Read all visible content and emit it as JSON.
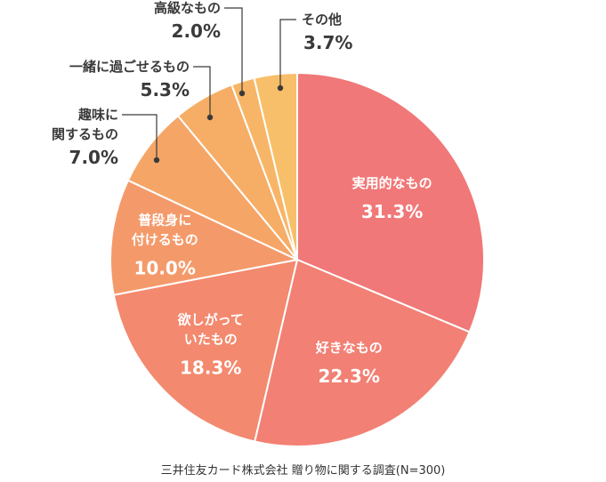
{
  "chart_data": {
    "type": "pie",
    "categories": [
      "実用的なもの",
      "好きなもの",
      "欲しがっていたもの",
      "普段身に付けるもの",
      "趣味に関するもの",
      "一緒に過ごせるもの",
      "高級なもの",
      "その他"
    ],
    "slices": [
      {
        "name_lines": [
          "実用的なもの"
        ],
        "value": 31.3,
        "label": "31.3%",
        "color": "#f07878",
        "label_pos": "inside"
      },
      {
        "name_lines": [
          "好きなもの"
        ],
        "value": 22.3,
        "label": "22.3%",
        "color": "#f28074",
        "label_pos": "inside"
      },
      {
        "name_lines": [
          "欲しがって",
          "いたもの"
        ],
        "value": 18.3,
        "label": "18.3%",
        "color": "#f3896e",
        "label_pos": "inside"
      },
      {
        "name_lines": [
          "普段身に",
          "付けるもの"
        ],
        "value": 10.0,
        "label": "10.0%",
        "color": "#f49a6a",
        "label_pos": "inside"
      },
      {
        "name_lines": [
          "趣味に",
          "関するもの"
        ],
        "value": 7.0,
        "label": "7.0%",
        "color": "#f5a667",
        "label_pos": "outside"
      },
      {
        "name_lines": [
          "一緒に過ごせるもの"
        ],
        "value": 5.3,
        "label": "5.3%",
        "color": "#f6ad66",
        "label_pos": "outside"
      },
      {
        "name_lines": [
          "高級なもの"
        ],
        "value": 2.0,
        "label": "2.0%",
        "color": "#f7b667",
        "label_pos": "outside"
      },
      {
        "name_lines": [
          "その他"
        ],
        "value": 3.7,
        "label": "3.7%",
        "color": "#f8bf6a",
        "label_pos": "outside"
      }
    ],
    "source": "三井住友カード株式会社 贈り物に関する調査(N=300)"
  }
}
